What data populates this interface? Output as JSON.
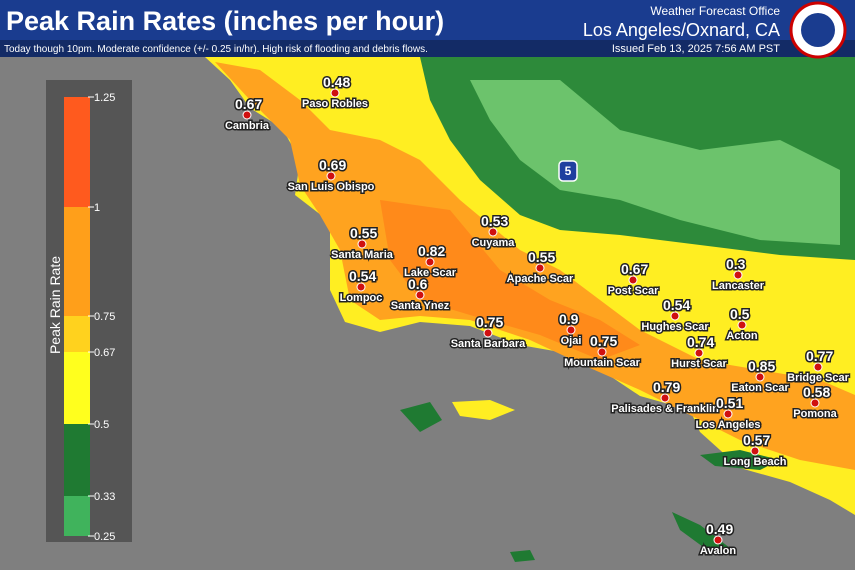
{
  "header": {
    "title": "Peak Rain Rates (inches per hour)",
    "subtitle": "Today though 10pm. Moderate confidence (+/- 0.25 in/hr). High risk of flooding and debris flows.",
    "office_line1": "Weather Forecast Office",
    "office_line2": "Los Angeles/Oxnard, CA",
    "issued": "Issued Feb 13, 2025 7:56 AM PST"
  },
  "legend": {
    "title": "Peak Rain Rate",
    "ticks": [
      1.25,
      1,
      0.75,
      0.67,
      0.5,
      0.33,
      0.25
    ],
    "colors": [
      "#ff5a1e",
      "#ff9f1a",
      "#ffd21e",
      "#ffff1e",
      "#1f7a32",
      "#40b35c"
    ]
  },
  "highway_shield": "5",
  "locations": [
    {
      "name": "Paso Robles",
      "value": 0.48
    },
    {
      "name": "Cambria",
      "value": 0.67
    },
    {
      "name": "San Luis Obispo",
      "value": 0.69
    },
    {
      "name": "Santa Maria",
      "value": 0.55
    },
    {
      "name": "Lake Scar",
      "value": 0.82
    },
    {
      "name": "Cuyama",
      "value": 0.53
    },
    {
      "name": "Apache Scar",
      "value": 0.55
    },
    {
      "name": "Lompoc",
      "value": 0.54
    },
    {
      "name": "Santa Ynez",
      "value": 0.6
    },
    {
      "name": "Santa Barbara",
      "value": 0.75
    },
    {
      "name": "Ojai",
      "value": 0.9
    },
    {
      "name": "Mountain Scar",
      "value": 0.75
    },
    {
      "name": "Post Scar",
      "value": 0.67
    },
    {
      "name": "Lancaster",
      "value": 0.3
    },
    {
      "name": "Hughes Scar",
      "value": 0.54
    },
    {
      "name": "Acton",
      "value": 0.5
    },
    {
      "name": "Hurst Scar",
      "value": 0.74
    },
    {
      "name": "Eaton Scar",
      "value": 0.85
    },
    {
      "name": "Bridge Scar",
      "value": 0.77
    },
    {
      "name": "Pomona",
      "value": 0.58
    },
    {
      "name": "Palisades & Franklin",
      "value": 0.79
    },
    {
      "name": "Los Angeles",
      "value": 0.51
    },
    {
      "name": "Long Beach",
      "value": 0.57
    },
    {
      "name": "Avalon",
      "value": 0.49
    }
  ]
}
